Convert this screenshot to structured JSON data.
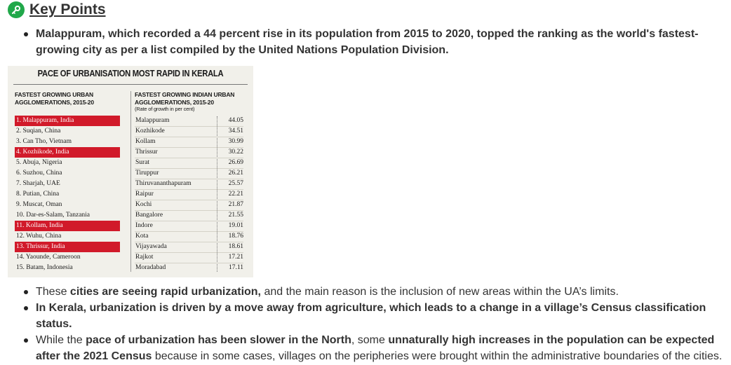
{
  "heading": {
    "icon": "key-icon",
    "accent": "#21a84a",
    "text": "Key Points"
  },
  "top_bullets": [
    {
      "parts": [
        {
          "text": "Malappuram, which recorded a 44 percent rise in its population from 2015 to 2020, topped the ranking as the world's fastest-growing city as per a list compiled by the United Nations Population Division.",
          "bold": true
        }
      ]
    }
  ],
  "infographic": {
    "title": "PACE OF URBANISATION MOST RAPID IN KERALA",
    "left_header": [
      "FASTEST GROWING URBAN",
      "AGGLOMERATIONS, 2015-20"
    ],
    "right_header": [
      "FASTEST GROWING INDIAN URBAN",
      "AGGLOMERATIONS, 2015-20"
    ],
    "right_subheader": "(Rate of growth in per cent)",
    "highlight_color": "#d11a2a",
    "world_ranking": [
      {
        "label": "1. Malappuram, India",
        "india": true
      },
      {
        "label": "2. Suqian, China",
        "india": false
      },
      {
        "label": "3. Can Tho, Vietnam",
        "india": false
      },
      {
        "label": "4. Kozhikode, India",
        "india": true
      },
      {
        "label": "5. Abuja, Nigeria",
        "india": false
      },
      {
        "label": "6. Suzhou, China",
        "india": false
      },
      {
        "label": "7. Sharjah, UAE",
        "india": false
      },
      {
        "label": "8. Putian, China",
        "india": false
      },
      {
        "label": "9. Muscat, Oman",
        "india": false
      },
      {
        "label": "10. Dar-es-Salam, Tanzania",
        "india": false
      },
      {
        "label": "11. Kollam, India",
        "india": true
      },
      {
        "label": "12. Wuhu, China",
        "india": false
      },
      {
        "label": "13. Thrissur, India",
        "india": true
      },
      {
        "label": "14. Yaounde, Cameroon",
        "india": false
      },
      {
        "label": "15. Batam, Indonesia",
        "india": false
      }
    ],
    "indian_ranking": [
      {
        "city": "Malappuram",
        "rate": "44.05"
      },
      {
        "city": "Kozhikode",
        "rate": "34.51"
      },
      {
        "city": "Kollam",
        "rate": "30.99"
      },
      {
        "city": "Thrissur",
        "rate": "30.22"
      },
      {
        "city": "Surat",
        "rate": "26.69"
      },
      {
        "city": "Tiruppur",
        "rate": "26.21"
      },
      {
        "city": "Thiruvananthapuram",
        "rate": "25.57"
      },
      {
        "city": "Raipur",
        "rate": "22.21"
      },
      {
        "city": "Kochi",
        "rate": "21.87"
      },
      {
        "city": "Bangalore",
        "rate": "21.55"
      },
      {
        "city": "Indore",
        "rate": "19.01"
      },
      {
        "city": "Kota",
        "rate": "18.76"
      },
      {
        "city": "Vijayawada",
        "rate": "18.61"
      },
      {
        "city": "Rajkot",
        "rate": "17.21"
      },
      {
        "city": "Moradabad",
        "rate": "17.11"
      }
    ]
  },
  "bottom_bullets": [
    {
      "parts": [
        {
          "text": "These ",
          "bold": false
        },
        {
          "text": "cities are seeing rapid urbanization,",
          "bold": true
        },
        {
          "text": " and the main reason is the inclusion of new areas within the UA’s limits.",
          "bold": false
        }
      ]
    },
    {
      "parts": [
        {
          "text": "In Kerala, urbanization is driven by a move away from agriculture, which leads to a change in a village’s Census classification status.",
          "bold": true
        }
      ]
    },
    {
      "parts": [
        {
          "text": "While the ",
          "bold": false
        },
        {
          "text": "pace of urbanization has been slower in the North",
          "bold": true
        },
        {
          "text": ", some ",
          "bold": false
        },
        {
          "text": "unnaturally high increases in the population can be expected after the 2021 Census",
          "bold": true
        },
        {
          "text": " because in some cases, villages on the peripheries were brought within the administrative boundaries of the cities.",
          "bold": false
        }
      ]
    }
  ]
}
